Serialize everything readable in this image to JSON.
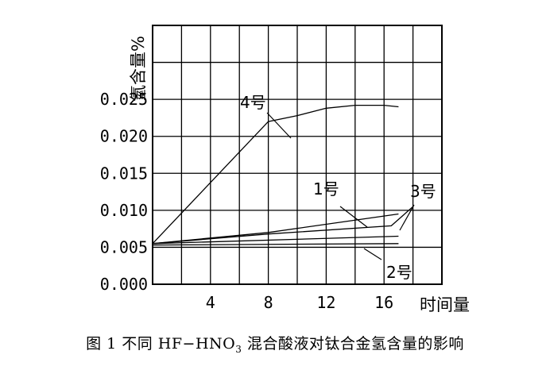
{
  "chart_data": {
    "type": "line",
    "title": "",
    "xlabel": "时间量",
    "ylabel": "氫含量%",
    "xlim": [
      0,
      20
    ],
    "ylim": [
      0,
      0.035
    ],
    "x_ticks": [
      4,
      8,
      12,
      16
    ],
    "y_ticks": [
      "0.000",
      "0.005",
      "0.010",
      "0.015",
      "0.020",
      "0.025"
    ],
    "grid": true,
    "series": [
      {
        "name": "4号",
        "x": [
          0,
          8,
          10,
          12,
          14,
          16,
          17
        ],
        "y": [
          0.0055,
          0.022,
          0.0228,
          0.0238,
          0.0242,
          0.0242,
          0.024
        ]
      },
      {
        "name": "1号",
        "x": [
          0,
          8,
          17
        ],
        "y": [
          0.0055,
          0.007,
          0.0095
        ]
      },
      {
        "name": "3号",
        "x": [
          0,
          8,
          16.5,
          18
        ],
        "y": [
          0.0055,
          0.0068,
          0.0079,
          0.0105
        ]
      },
      {
        "name": "2号",
        "x": [
          0,
          17
        ],
        "y": [
          0.0055,
          0.0065
        ]
      },
      {
        "name": "",
        "x": [
          0,
          17
        ],
        "y": [
          0.0053,
          0.0055
        ]
      }
    ],
    "annotations": [
      {
        "text": "4号",
        "series": 0
      },
      {
        "text": "1号",
        "series": 1
      },
      {
        "text": "3号",
        "series": 2
      },
      {
        "text": "2号",
        "series": 3
      }
    ]
  },
  "caption": {
    "prefix": "图 1 不同 HF−HNO",
    "subscript": "3",
    "suffix": " 混合酸液对钛合金氢含量的影响"
  }
}
